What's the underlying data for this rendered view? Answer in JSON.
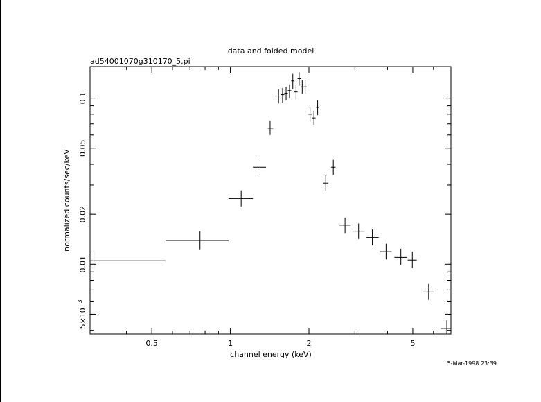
{
  "chart_data": {
    "type": "scatter",
    "title": "data and folded model",
    "subtitle": "ad54001070g310170_5.pi",
    "xlabel": "channel energy (keV)",
    "ylabel": "normalized counts/sec/keV",
    "timestamp": "5-Mar-1998 23:39",
    "x_scale": "log",
    "y_scale": "log",
    "xlim": [
      0.29,
      7.0
    ],
    "ylim": [
      0.0038,
      0.155
    ],
    "x_tick_labels": [
      {
        "value": 0.5,
        "label": "0.5"
      },
      {
        "value": 1,
        "label": "1"
      },
      {
        "value": 2,
        "label": "2"
      },
      {
        "value": 5,
        "label": "5"
      }
    ],
    "y_tick_labels": [
      {
        "value": 0.005,
        "label": "5×10",
        "exp": "−3"
      },
      {
        "value": 0.01,
        "label": "0.01"
      },
      {
        "value": 0.02,
        "label": "0.02"
      },
      {
        "value": 0.05,
        "label": "0.05"
      },
      {
        "value": 0.1,
        "label": "0.1"
      }
    ],
    "grid": false,
    "points": [
      {
        "x": 0.3,
        "xlo": 0.29,
        "xhi": 0.565,
        "y": 0.0105,
        "ylo": 0.0092,
        "yhi": 0.0121
      },
      {
        "x": 0.765,
        "xlo": 0.565,
        "xhi": 0.985,
        "y": 0.0139,
        "ylo": 0.0123,
        "yhi": 0.0158
      },
      {
        "x": 1.1,
        "xlo": 0.985,
        "xhi": 1.22,
        "y": 0.0249,
        "ylo": 0.0223,
        "yhi": 0.0278
      },
      {
        "x": 1.3,
        "xlo": 1.22,
        "xhi": 1.37,
        "y": 0.0384,
        "ylo": 0.0345,
        "yhi": 0.0425
      },
      {
        "x": 1.42,
        "xlo": 1.39,
        "xhi": 1.46,
        "y": 0.066,
        "ylo": 0.06,
        "yhi": 0.073
      },
      {
        "x": 1.53,
        "xlo": 1.5,
        "xhi": 1.56,
        "y": 0.103,
        "ylo": 0.093,
        "yhi": 0.113
      },
      {
        "x": 1.585,
        "xlo": 1.56,
        "xhi": 1.61,
        "y": 0.105,
        "ylo": 0.094,
        "yhi": 0.115
      },
      {
        "x": 1.635,
        "xlo": 1.61,
        "xhi": 1.66,
        "y": 0.107,
        "ylo": 0.097,
        "yhi": 0.117
      },
      {
        "x": 1.685,
        "xlo": 1.66,
        "xhi": 1.71,
        "y": 0.111,
        "ylo": 0.1,
        "yhi": 0.121
      },
      {
        "x": 1.735,
        "xlo": 1.71,
        "xhi": 1.76,
        "y": 0.127,
        "ylo": 0.114,
        "yhi": 0.14
      },
      {
        "x": 1.785,
        "xlo": 1.76,
        "xhi": 1.81,
        "y": 0.109,
        "ylo": 0.098,
        "yhi": 0.12
      },
      {
        "x": 1.835,
        "xlo": 1.81,
        "xhi": 1.86,
        "y": 0.131,
        "ylo": 0.119,
        "yhi": 0.143
      },
      {
        "x": 1.885,
        "xlo": 1.86,
        "xhi": 1.91,
        "y": 0.117,
        "ylo": 0.106,
        "yhi": 0.129
      },
      {
        "x": 1.935,
        "xlo": 1.91,
        "xhi": 1.96,
        "y": 0.117,
        "ylo": 0.106,
        "yhi": 0.129
      },
      {
        "x": 2.02,
        "xlo": 1.99,
        "xhi": 2.05,
        "y": 0.08,
        "ylo": 0.072,
        "yhi": 0.088
      },
      {
        "x": 2.09,
        "xlo": 2.06,
        "xhi": 2.12,
        "y": 0.076,
        "ylo": 0.069,
        "yhi": 0.084
      },
      {
        "x": 2.16,
        "xlo": 2.13,
        "xhi": 2.19,
        "y": 0.088,
        "ylo": 0.079,
        "yhi": 0.097
      },
      {
        "x": 2.32,
        "xlo": 2.27,
        "xhi": 2.37,
        "y": 0.0308,
        "ylo": 0.0276,
        "yhi": 0.0343
      },
      {
        "x": 2.48,
        "xlo": 2.43,
        "xhi": 2.53,
        "y": 0.0384,
        "ylo": 0.0345,
        "yhi": 0.0425
      },
      {
        "x": 2.75,
        "xlo": 2.62,
        "xhi": 2.88,
        "y": 0.0172,
        "ylo": 0.0154,
        "yhi": 0.0191
      },
      {
        "x": 3.1,
        "xlo": 2.93,
        "xhi": 3.27,
        "y": 0.0158,
        "ylo": 0.0142,
        "yhi": 0.0176
      },
      {
        "x": 3.5,
        "xlo": 3.31,
        "xhi": 3.7,
        "y": 0.0145,
        "ylo": 0.013,
        "yhi": 0.0162
      },
      {
        "x": 3.95,
        "xlo": 3.75,
        "xhi": 4.15,
        "y": 0.0119,
        "ylo": 0.0107,
        "yhi": 0.0133
      },
      {
        "x": 4.5,
        "xlo": 4.25,
        "xhi": 4.75,
        "y": 0.011,
        "ylo": 0.0099,
        "yhi": 0.0124
      },
      {
        "x": 4.98,
        "xlo": 4.78,
        "xhi": 5.18,
        "y": 0.0106,
        "ylo": 0.0095,
        "yhi": 0.0119
      },
      {
        "x": 5.75,
        "xlo": 5.45,
        "xhi": 6.05,
        "y": 0.0068,
        "ylo": 0.0061,
        "yhi": 0.0076
      },
      {
        "x": 6.75,
        "xlo": 6.4,
        "xhi": 7.0,
        "y": 0.0041,
        "ylo": 0.0038,
        "yhi": 0.0046
      }
    ]
  }
}
